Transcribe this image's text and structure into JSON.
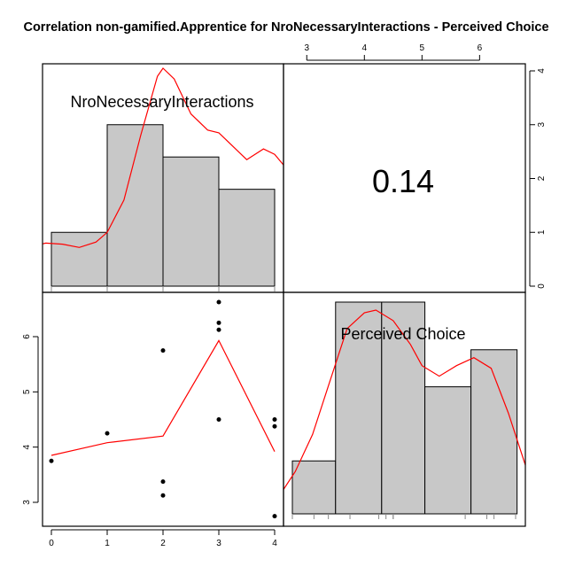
{
  "chart_data": {
    "type": "scatter",
    "title": "Correlation non-gamified.Apprentice for NroNecessaryInteractions - Perceived Choice",
    "variables": [
      "NroNecessaryInteractions",
      "Perceived Choice"
    ],
    "correlation": "0.14",
    "x_var": {
      "name": "NroNecessaryInteractions",
      "range": [
        0,
        4
      ],
      "ticks": [
        "0",
        "1",
        "2",
        "3",
        "4"
      ],
      "histogram": {
        "bins": [
          [
            0,
            1
          ],
          [
            1,
            2
          ],
          [
            2,
            3
          ],
          [
            3,
            4
          ]
        ],
        "heights": [
          1,
          3,
          2.4,
          1.8
        ],
        "values": [
          0,
          1,
          2,
          2,
          2,
          3,
          3,
          3,
          3,
          4,
          4,
          4
        ],
        "density": [
          [
            -0.5,
            0.7
          ],
          [
            -0.1,
            0.8
          ],
          [
            0.2,
            0.78
          ],
          [
            0.5,
            0.72
          ],
          [
            0.8,
            0.82
          ],
          [
            1.0,
            1.0
          ],
          [
            1.3,
            1.6
          ],
          [
            1.6,
            2.8
          ],
          [
            1.9,
            3.9
          ],
          [
            2.0,
            4.05
          ],
          [
            2.2,
            3.85
          ],
          [
            2.5,
            3.2
          ],
          [
            2.8,
            2.9
          ],
          [
            3.0,
            2.85
          ],
          [
            3.3,
            2.55
          ],
          [
            3.5,
            2.35
          ],
          [
            3.8,
            2.55
          ],
          [
            4.0,
            2.45
          ],
          [
            4.2,
            2.2
          ]
        ]
      }
    },
    "y_var": {
      "name": "Perceived Choice",
      "range": [
        2.75,
        6.625
      ],
      "ticks": [
        "3",
        "4",
        "5",
        "6"
      ],
      "histogram": {
        "bins": [
          [
            2.75,
            3.5
          ],
          [
            3.5,
            4.3
          ],
          [
            4.3,
            5.05
          ],
          [
            5.05,
            5.85
          ],
          [
            5.85,
            6.65
          ]
        ],
        "heights": [
          1,
          4,
          4,
          2.4,
          3.1
        ],
        "values": [
          2.75,
          3.125,
          3.375,
          3.75,
          4.25,
          4.375,
          4.5,
          4.5,
          5.75,
          6.125,
          6.25,
          6.625
        ],
        "density": [
          [
            2.5,
            0.3
          ],
          [
            2.8,
            0.8
          ],
          [
            3.1,
            1.5
          ],
          [
            3.4,
            2.5
          ],
          [
            3.7,
            3.5
          ],
          [
            4.0,
            3.8
          ],
          [
            4.2,
            3.85
          ],
          [
            4.5,
            3.65
          ],
          [
            4.8,
            3.2
          ],
          [
            5.0,
            2.8
          ],
          [
            5.3,
            2.6
          ],
          [
            5.6,
            2.8
          ],
          [
            5.9,
            2.95
          ],
          [
            6.2,
            2.75
          ],
          [
            6.5,
            1.9
          ],
          [
            6.8,
            0.9
          ],
          [
            7.0,
            0.4
          ]
        ]
      },
      "hist_axis_ticks": [
        "0",
        "1",
        "2",
        "3",
        "4"
      ]
    },
    "points": [
      [
        0,
        3.75
      ],
      [
        1,
        4.25
      ],
      [
        2,
        5.75
      ],
      [
        2,
        3.375
      ],
      [
        2,
        3.125
      ],
      [
        3,
        6.625
      ],
      [
        3,
        6.25
      ],
      [
        3,
        6.125
      ],
      [
        3,
        4.5
      ],
      [
        4,
        4.5
      ],
      [
        4,
        4.375
      ],
      [
        4,
        2.75
      ]
    ],
    "smoother": [
      [
        0,
        3.85
      ],
      [
        1,
        4.08
      ],
      [
        2,
        4.2
      ],
      [
        3,
        5.93
      ],
      [
        4,
        3.92
      ]
    ],
    "top_axis_ticks": [
      "3",
      "4",
      "5",
      "6"
    ],
    "colors": {
      "bar": "#c8c8c8",
      "curve": "#ff0000",
      "points": "#000000"
    }
  }
}
